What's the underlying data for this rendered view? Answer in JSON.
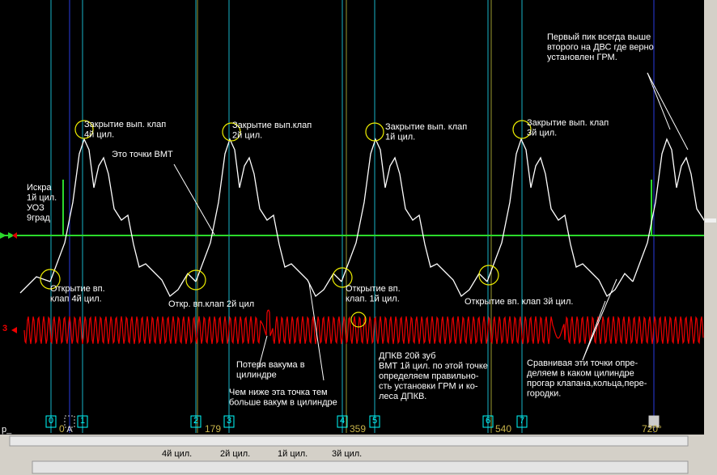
{
  "annotations": [
    {
      "lines": [
        "Первый пик всегда выше",
        "второго на ДВС где верно",
        "установлен ГРМ."
      ]
    },
    {
      "lines": [
        "Закрытие вып. клап",
        "4й цил."
      ]
    },
    {
      "lines": [
        "Закрытие вып.клап",
        "2й цил."
      ]
    },
    {
      "lines": [
        "Закрытие вып. клап",
        "1й цил."
      ]
    },
    {
      "lines": [
        "Закрытие вып. клап",
        "3й цил."
      ]
    },
    {
      "lines": [
        "Это точки ВМТ"
      ]
    },
    {
      "lines": [
        "Искра",
        "1й цил.",
        "УОЗ",
        "9град"
      ]
    },
    {
      "lines": [
        "Открытие вп.",
        "клап 4й цил."
      ]
    },
    {
      "lines": [
        "Откр. вп.клап  2й цил"
      ]
    },
    {
      "lines": [
        "Открытие вп.",
        "клап. 1й цил."
      ]
    },
    {
      "lines": [
        "Открытие вп. клап 3й цил."
      ]
    },
    {
      "lines": [
        "Потеря вакума в",
        "цилиндре"
      ]
    },
    {
      "lines": [
        "Чем ниже эта точка тем",
        "больше вакум в цилиндре"
      ]
    },
    {
      "lines": [
        "ДПКВ 20й зуб",
        "ВМТ 1й цил. по этой точке",
        "определяем правильно-",
        "сть установки ГРМ и ко-",
        "леса ДПКВ."
      ]
    },
    {
      "lines": [
        "Сравнивая эти точки опре-",
        "деляем в каком цилиндре",
        "прогар клапана,кольца,пере-",
        "городки."
      ]
    }
  ],
  "markers": [
    "0",
    "1",
    "2",
    "3",
    "4",
    "5",
    "6",
    "7"
  ],
  "cursors": [
    "A",
    "B"
  ],
  "degree_labels": [
    "0",
    "179",
    "359",
    "540",
    "720°"
  ],
  "channel_label": "3",
  "status_label": "р_",
  "tabs": [
    "4й цил.",
    "2й цил.",
    "1й цил.",
    "3й цил."
  ]
}
